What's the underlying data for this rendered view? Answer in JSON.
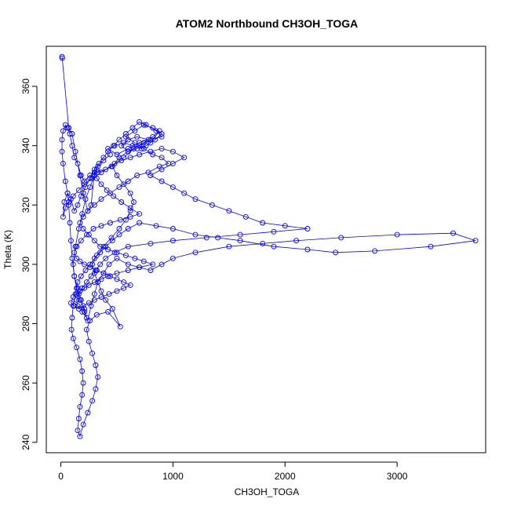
{
  "chart_data": {
    "type": "line",
    "title": "ATOM2 Northbound CH3OH_TOGA",
    "xlabel": "CH3OH_TOGA",
    "ylabel": "Theta (K)",
    "xlim": [
      -130,
      3790
    ],
    "ylim": [
      236.5,
      373.5
    ],
    "x_ticks": [
      0,
      1000,
      2000,
      3000
    ],
    "x_tick_labels": [
      "0",
      "1000",
      "2000",
      "3000"
    ],
    "y_ticks": [
      240,
      260,
      280,
      300,
      320,
      340,
      360
    ],
    "y_tick_labels": [
      "240",
      "260",
      "280",
      "300",
      "320",
      "340",
      "360"
    ],
    "grid": false,
    "series_color": "#0000ff",
    "marker": "open-circle",
    "series": [
      {
        "points": [
          [
            10,
            370
          ],
          [
            12,
            369.5
          ],
          [
            70,
            346
          ],
          [
            100,
            344
          ],
          [
            130,
            338
          ],
          [
            170,
            330
          ],
          [
            200,
            324
          ],
          [
            240,
            318
          ],
          [
            270,
            320
          ],
          [
            300,
            331
          ],
          [
            320,
            332
          ],
          [
            300,
            330
          ],
          [
            260,
            326
          ],
          [
            220,
            322
          ],
          [
            190,
            317
          ],
          [
            160,
            312
          ],
          [
            130,
            306
          ],
          [
            110,
            300
          ],
          [
            120,
            296
          ],
          [
            150,
            292
          ],
          [
            180,
            288
          ],
          [
            210,
            284
          ],
          [
            240,
            281
          ],
          [
            270,
            286
          ],
          [
            300,
            290
          ],
          [
            330,
            294
          ],
          [
            380,
            297
          ],
          [
            430,
            300
          ],
          [
            500,
            302
          ],
          [
            600,
            300
          ],
          [
            700,
            299
          ],
          [
            800,
            298
          ],
          [
            900,
            300
          ],
          [
            1000,
            302
          ],
          [
            1200,
            304
          ],
          [
            1500,
            306
          ],
          [
            1800,
            307
          ],
          [
            2100,
            308
          ],
          [
            2500,
            309
          ],
          [
            3000,
            310
          ],
          [
            3500,
            310.5
          ],
          [
            3700,
            308
          ],
          [
            3300,
            306
          ],
          [
            2800,
            304.5
          ],
          [
            2450,
            304
          ],
          [
            2200,
            305
          ],
          [
            1900,
            306
          ],
          [
            1600,
            308
          ],
          [
            1400,
            309
          ],
          [
            1200,
            310
          ],
          [
            1000,
            312
          ],
          [
            850,
            313
          ],
          [
            700,
            314
          ],
          [
            600,
            312
          ],
          [
            520,
            310
          ],
          [
            460,
            308
          ],
          [
            400,
            306
          ],
          [
            350,
            304
          ],
          [
            300,
            302
          ],
          [
            260,
            300
          ],
          [
            220,
            298
          ],
          [
            180,
            296
          ],
          [
            150,
            294
          ],
          [
            130,
            290
          ],
          [
            110,
            286
          ],
          [
            100,
            282
          ],
          [
            95,
            278
          ],
          [
            110,
            275
          ],
          [
            140,
            272
          ],
          [
            170,
            268
          ],
          [
            190,
            264
          ],
          [
            200,
            260
          ],
          [
            190,
            256
          ],
          [
            170,
            252
          ],
          [
            160,
            248
          ],
          [
            150,
            244
          ],
          [
            170,
            242
          ],
          [
            200,
            246
          ],
          [
            240,
            250
          ],
          [
            280,
            254
          ],
          [
            310,
            258
          ],
          [
            330,
            262
          ],
          [
            310,
            266
          ],
          [
            280,
            270
          ],
          [
            250,
            274
          ],
          [
            230,
            278
          ],
          [
            260,
            281
          ],
          [
            320,
            283
          ],
          [
            420,
            284
          ],
          [
            530,
            279
          ],
          [
            460,
            285
          ],
          [
            400,
            288
          ],
          [
            360,
            291
          ],
          [
            330,
            294
          ],
          [
            300,
            297
          ],
          [
            280,
            300
          ],
          [
            320,
            303
          ],
          [
            380,
            306
          ],
          [
            450,
            309
          ],
          [
            520,
            312
          ],
          [
            580,
            315
          ],
          [
            620,
            318
          ],
          [
            650,
            321
          ],
          [
            620,
            324
          ],
          [
            560,
            327
          ],
          [
            500,
            330
          ],
          [
            460,
            333
          ],
          [
            520,
            336
          ],
          [
            600,
            338
          ],
          [
            700,
            340
          ],
          [
            800,
            342
          ],
          [
            900,
            343
          ],
          [
            850,
            345
          ],
          [
            760,
            347
          ],
          [
            700,
            348
          ],
          [
            640,
            346
          ],
          [
            580,
            344
          ],
          [
            520,
            342
          ],
          [
            470,
            340
          ],
          [
            420,
            338
          ],
          [
            380,
            336
          ],
          [
            340,
            334
          ],
          [
            300,
            332
          ],
          [
            260,
            329
          ],
          [
            220,
            326
          ],
          [
            180,
            323
          ],
          [
            150,
            320
          ],
          [
            120,
            318
          ],
          [
            90,
            322
          ],
          [
            60,
            324
          ],
          [
            30,
            321
          ],
          [
            20,
            316
          ],
          [
            40,
            319
          ],
          [
            70,
            321
          ],
          [
            110,
            323
          ],
          [
            160,
            325
          ],
          [
            210,
            327
          ],
          [
            280,
            329
          ],
          [
            360,
            331
          ],
          [
            450,
            333
          ],
          [
            540,
            335
          ],
          [
            620,
            336
          ],
          [
            700,
            337
          ],
          [
            800,
            338
          ],
          [
            900,
            339
          ],
          [
            1000,
            338
          ],
          [
            1100,
            336
          ],
          [
            1000,
            334
          ],
          [
            900,
            332
          ],
          [
            800,
            330
          ],
          [
            900,
            328
          ],
          [
            1000,
            326
          ],
          [
            1100,
            324
          ],
          [
            1200,
            322
          ],
          [
            1350,
            320
          ],
          [
            1500,
            318
          ],
          [
            1650,
            316
          ],
          [
            1800,
            314
          ],
          [
            2000,
            313
          ],
          [
            2200,
            312
          ],
          [
            1900,
            311
          ],
          [
            1600,
            310
          ],
          [
            1300,
            309
          ],
          [
            1000,
            308
          ],
          [
            800,
            307
          ],
          [
            600,
            306
          ],
          [
            480,
            304
          ],
          [
            400,
            302
          ],
          [
            350,
            300
          ],
          [
            310,
            298
          ],
          [
            270,
            296
          ],
          [
            230,
            294
          ],
          [
            190,
            292
          ],
          [
            160,
            290
          ],
          [
            140,
            288
          ],
          [
            150,
            286
          ],
          [
            190,
            284
          ],
          [
            230,
            282
          ],
          [
            210,
            285
          ],
          [
            170,
            288
          ],
          [
            140,
            292
          ],
          [
            120,
            296
          ],
          [
            100,
            302
          ],
          [
            90,
            308
          ],
          [
            80,
            314
          ],
          [
            70,
            320
          ],
          [
            60,
            324
          ],
          [
            40,
            328
          ],
          [
            20,
            334
          ],
          [
            10,
            338
          ],
          [
            10,
            342
          ],
          [
            20,
            345
          ],
          [
            40,
            347
          ],
          [
            60,
            346
          ],
          [
            80,
            344
          ],
          [
            100,
            340
          ],
          [
            120,
            336
          ],
          [
            150,
            334
          ],
          [
            180,
            330
          ],
          [
            210,
            328
          ],
          [
            260,
            330
          ],
          [
            330,
            331
          ],
          [
            400,
            332
          ],
          [
            480,
            334
          ],
          [
            560,
            336
          ],
          [
            650,
            339
          ],
          [
            740,
            341
          ],
          [
            820,
            343
          ],
          [
            880,
            345
          ],
          [
            800,
            341
          ],
          [
            720,
            339
          ],
          [
            640,
            340
          ],
          [
            560,
            341
          ],
          [
            480,
            340
          ],
          [
            420,
            339
          ],
          [
            500,
            337
          ],
          [
            600,
            339
          ],
          [
            700,
            341
          ],
          [
            780,
            342
          ],
          [
            680,
            343
          ],
          [
            600,
            342
          ],
          [
            540,
            340
          ],
          [
            600,
            338
          ],
          [
            680,
            339
          ],
          [
            760,
            340
          ],
          [
            840,
            342
          ],
          [
            900,
            344
          ],
          [
            820,
            346
          ],
          [
            740,
            347
          ],
          [
            660,
            345
          ],
          [
            580,
            343
          ],
          [
            660,
            341
          ],
          [
            740,
            339
          ],
          [
            820,
            337
          ],
          [
            900,
            336
          ],
          [
            960,
            334
          ],
          [
            880,
            333
          ],
          [
            780,
            331
          ],
          [
            680,
            330
          ],
          [
            600,
            328
          ],
          [
            520,
            326
          ],
          [
            440,
            324
          ],
          [
            360,
            322
          ],
          [
            300,
            320
          ],
          [
            240,
            318
          ],
          [
            200,
            316
          ],
          [
            170,
            314
          ],
          [
            200,
            312
          ],
          [
            250,
            310
          ],
          [
            300,
            308
          ],
          [
            350,
            306
          ],
          [
            420,
            305
          ],
          [
            500,
            304
          ],
          [
            580,
            303
          ],
          [
            660,
            302
          ],
          [
            740,
            301
          ],
          [
            820,
            300
          ],
          [
            700,
            299
          ],
          [
            600,
            298
          ],
          [
            500,
            297
          ],
          [
            420,
            296
          ],
          [
            360,
            295
          ],
          [
            300,
            294
          ],
          [
            250,
            293
          ],
          [
            210,
            292
          ],
          [
            170,
            291
          ],
          [
            140,
            290
          ],
          [
            110,
            289
          ],
          [
            90,
            287
          ],
          [
            120,
            286
          ],
          [
            160,
            285
          ],
          [
            200,
            286
          ],
          [
            250,
            287
          ],
          [
            300,
            288
          ],
          [
            360,
            289
          ],
          [
            430,
            290
          ],
          [
            500,
            291
          ],
          [
            560,
            292
          ],
          [
            620,
            293
          ],
          [
            560,
            294
          ],
          [
            500,
            295
          ],
          [
            440,
            296
          ],
          [
            380,
            297
          ],
          [
            320,
            298
          ],
          [
            260,
            299
          ],
          [
            210,
            300
          ],
          [
            170,
            301
          ],
          [
            140,
            302
          ],
          [
            120,
            304
          ],
          [
            140,
            306
          ],
          [
            180,
            308
          ],
          [
            230,
            310
          ],
          [
            290,
            312
          ],
          [
            360,
            313
          ],
          [
            440,
            314
          ],
          [
            530,
            315
          ],
          [
            620,
            316
          ],
          [
            700,
            317
          ],
          [
            620,
            319
          ],
          [
            540,
            321
          ],
          [
            470,
            323
          ],
          [
            410,
            325
          ],
          [
            360,
            327
          ],
          [
            320,
            329
          ],
          [
            300,
            331
          ],
          [
            330,
            333
          ],
          [
            380,
            335
          ],
          [
            440,
            337
          ]
        ]
      }
    ]
  }
}
